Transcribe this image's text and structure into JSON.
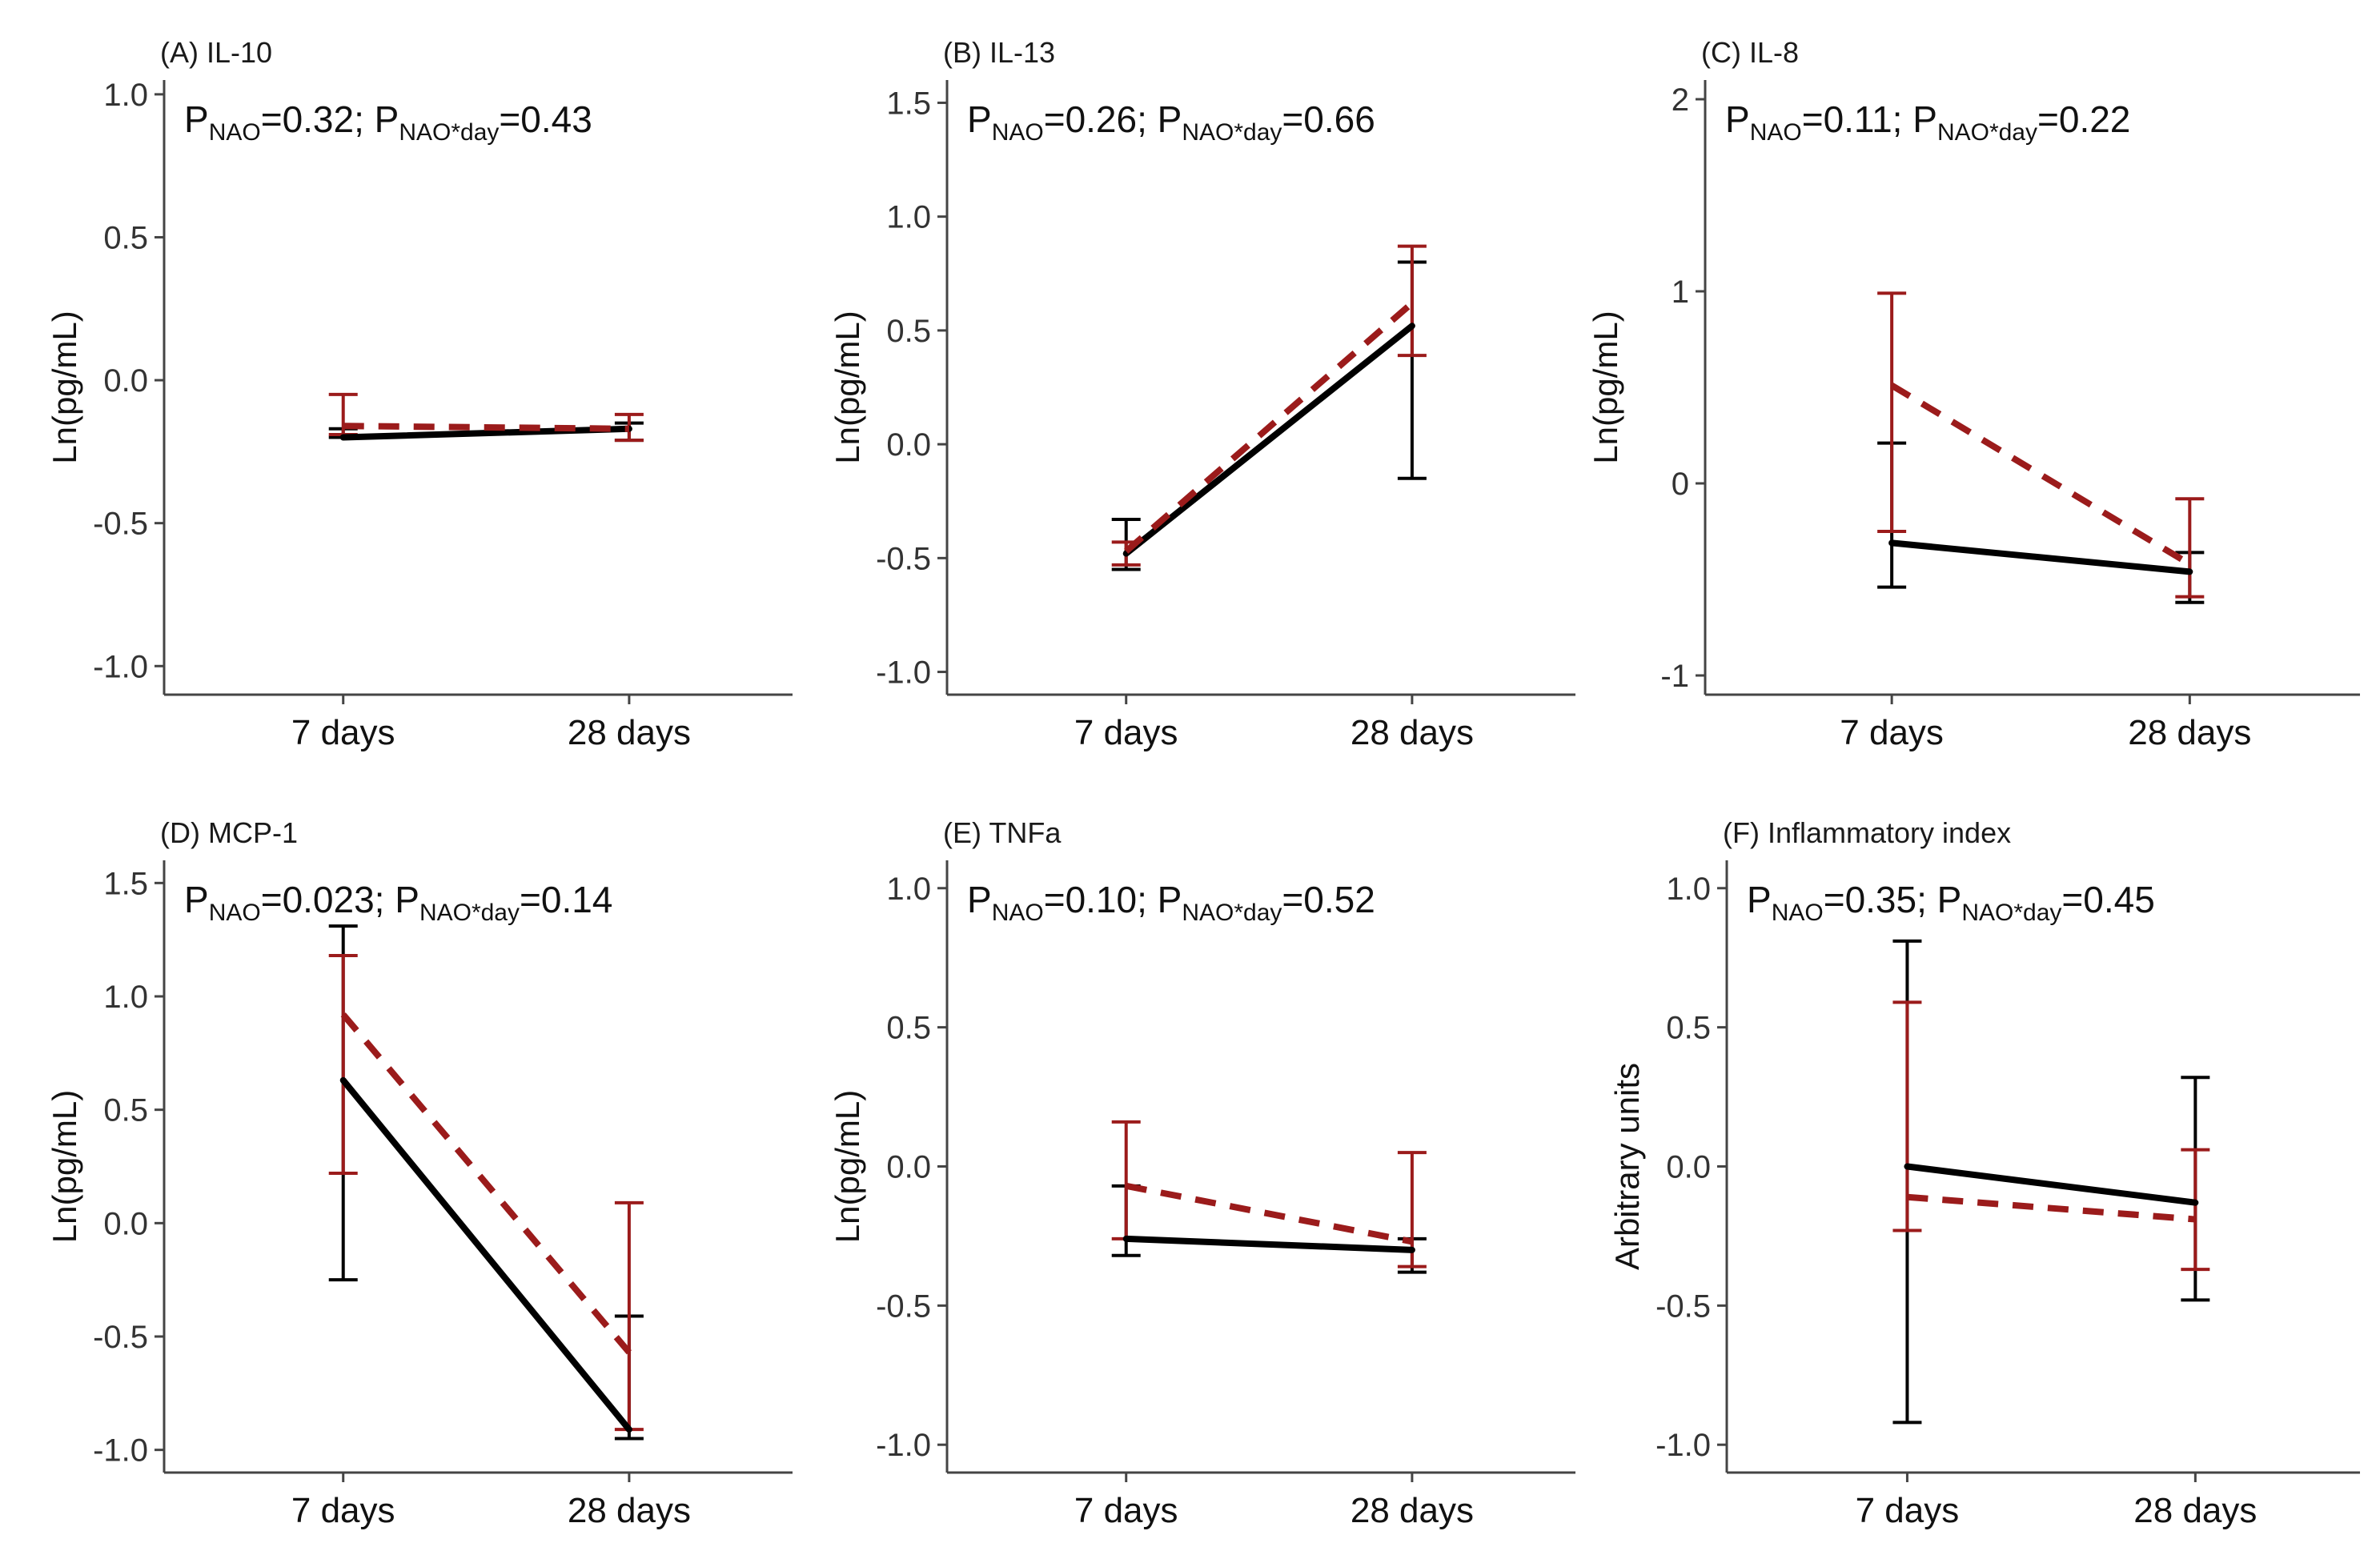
{
  "colors": {
    "ref": "#000000",
    "nao": "#9b1b1b",
    "axis": "#444444"
  },
  "chart_data": [
    {
      "type": "line",
      "title": "(A) IL-10",
      "p_nao": "0.32",
      "p_int": "0.43",
      "ylabel": "Ln(pg/mL)",
      "categories": [
        "7 days",
        "28 days"
      ],
      "ylim": [
        -1.1,
        1.05
      ],
      "yticks": [
        1.0,
        0.5,
        0.0,
        -0.5,
        -1.0
      ],
      "ytick_labels": [
        "1.0",
        "0.5",
        "0.0",
        "-0.5",
        "-1.0"
      ],
      "series": [
        {
          "color": "#000000",
          "dash": false,
          "values": [
            -0.2,
            -0.17
          ],
          "lower": [
            -0.2,
            -0.21
          ],
          "upper": [
            -0.17,
            -0.15
          ]
        },
        {
          "color": "#9b1b1b",
          "dash": true,
          "values": [
            -0.16,
            -0.17
          ],
          "lower": [
            -0.19,
            -0.21
          ],
          "upper": [
            -0.05,
            -0.12
          ]
        }
      ]
    },
    {
      "type": "line",
      "title": "(B) IL-13",
      "p_nao": "0.26",
      "p_int": "0.66",
      "ylabel": "Ln(pg/mL)",
      "categories": [
        "7 days",
        "28 days"
      ],
      "ylim": [
        -1.1,
        1.6
      ],
      "yticks": [
        1.5,
        1.0,
        0.5,
        0.0,
        -0.5,
        -1.0
      ],
      "ytick_labels": [
        "1.5",
        "1.0",
        "0.5",
        "0.0",
        "-0.5",
        "-1.0"
      ],
      "series": [
        {
          "color": "#000000",
          "dash": false,
          "values": [
            -0.48,
            0.52
          ],
          "lower": [
            -0.55,
            -0.15
          ],
          "upper": [
            -0.33,
            0.8
          ]
        },
        {
          "color": "#9b1b1b",
          "dash": true,
          "values": [
            -0.47,
            0.62
          ],
          "lower": [
            -0.53,
            0.39
          ],
          "upper": [
            -0.43,
            0.87
          ]
        }
      ]
    },
    {
      "type": "line",
      "title": "(C) IL-8",
      "p_nao": "0.11",
      "p_int": "0.22",
      "ylabel": "Ln(pg/mL)",
      "categories": [
        "7 days",
        "28 days"
      ],
      "ylim": [
        -1.1,
        2.1
      ],
      "yticks": [
        2,
        1,
        0,
        -1
      ],
      "ytick_labels": [
        "2",
        "1",
        "0",
        "-1"
      ],
      "series": [
        {
          "color": "#000000",
          "dash": false,
          "values": [
            -0.31,
            -0.46
          ],
          "lower": [
            -0.54,
            -0.62
          ],
          "upper": [
            0.21,
            -0.36
          ]
        },
        {
          "color": "#9b1b1b",
          "dash": true,
          "values": [
            0.51,
            -0.42
          ],
          "lower": [
            -0.25,
            -0.59
          ],
          "upper": [
            0.99,
            -0.08
          ]
        }
      ]
    },
    {
      "type": "line",
      "title": "(D) MCP-1",
      "p_nao": "0.023",
      "p_int": "0.14",
      "ylabel": "Ln(pg/mL)",
      "categories": [
        "7 days",
        "28 days"
      ],
      "ylim": [
        -1.1,
        1.6
      ],
      "yticks": [
        1.5,
        1.0,
        0.5,
        0.0,
        -0.5,
        -1.0
      ],
      "ytick_labels": [
        "1.5",
        "1.0",
        "0.5",
        "0.0",
        "-0.5",
        "-1.0"
      ],
      "series": [
        {
          "color": "#000000",
          "dash": false,
          "values": [
            0.63,
            -0.91
          ],
          "lower": [
            -0.25,
            -0.95
          ],
          "upper": [
            1.31,
            -0.41
          ]
        },
        {
          "color": "#9b1b1b",
          "dash": true,
          "values": [
            0.92,
            -0.57
          ],
          "lower": [
            0.22,
            -0.91
          ],
          "upper": [
            1.18,
            0.09
          ]
        }
      ]
    },
    {
      "type": "line",
      "title": "(E) TNFa",
      "p_nao": "0.10",
      "p_int": "0.52",
      "ylabel": "Ln(pg/mL)",
      "categories": [
        "7 days",
        "28 days"
      ],
      "ylim": [
        -1.1,
        1.1
      ],
      "yticks": [
        1.0,
        0.5,
        0.0,
        -0.5,
        -1.0
      ],
      "ytick_labels": [
        "1.0",
        "0.5",
        "0.0",
        "-0.5",
        "-1.0"
      ],
      "series": [
        {
          "color": "#000000",
          "dash": false,
          "values": [
            -0.26,
            -0.3
          ],
          "lower": [
            -0.32,
            -0.38
          ],
          "upper": [
            -0.07,
            -0.26
          ]
        },
        {
          "color": "#9b1b1b",
          "dash": true,
          "values": [
            -0.07,
            -0.27
          ],
          "lower": [
            -0.26,
            -0.36
          ],
          "upper": [
            0.16,
            0.05
          ]
        }
      ]
    },
    {
      "type": "line",
      "title": "(F) Inflammatory index",
      "p_nao": "0.35",
      "p_int": "0.45",
      "ylabel": "Arbitrary units",
      "categories": [
        "7 days",
        "28 days"
      ],
      "ylim": [
        -1.1,
        1.1
      ],
      "yticks": [
        1.0,
        0.5,
        0.0,
        -0.5,
        -1.0
      ],
      "ytick_labels": [
        "1.0",
        "0.5",
        "0.0",
        "-0.5",
        "-1.0"
      ],
      "series": [
        {
          "color": "#000000",
          "dash": false,
          "values": [
            0.0,
            -0.13
          ],
          "lower": [
            -0.92,
            -0.48
          ],
          "upper": [
            0.81,
            0.32
          ]
        },
        {
          "color": "#9b1b1b",
          "dash": true,
          "values": [
            -0.11,
            -0.19
          ],
          "lower": [
            -0.23,
            -0.37
          ],
          "upper": [
            0.59,
            0.06
          ]
        }
      ]
    }
  ]
}
